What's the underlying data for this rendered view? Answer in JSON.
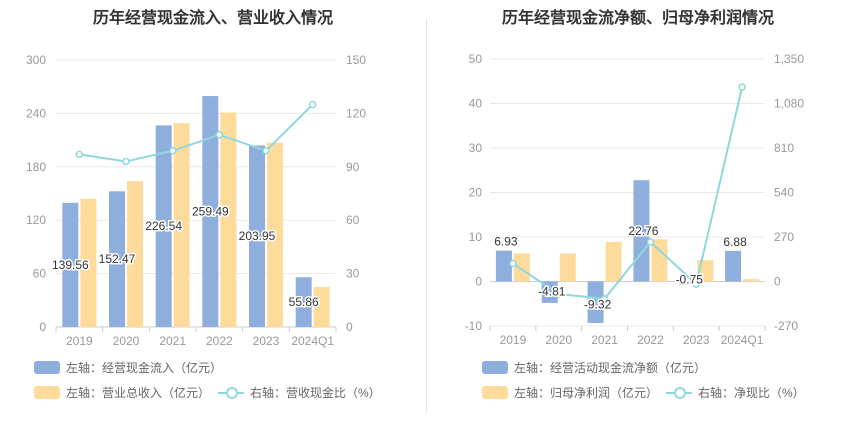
{
  "colors": {
    "bar_left": "#8eaedd",
    "bar_right": "#ffdb9b",
    "line": "#8fd7dc",
    "grid": "#e8e8e8",
    "axis_text": "#999999"
  },
  "chart_data": [
    {
      "type": "bar",
      "title": "历年经营现金流入、营业收入情况",
      "categories": [
        "2019",
        "2020",
        "2021",
        "2022",
        "2023",
        "2024Q1"
      ],
      "left_axis": {
        "min": 0,
        "max": 300,
        "ticks": [
          "0",
          "60",
          "120",
          "180",
          "240",
          "300"
        ]
      },
      "right_axis": {
        "min": 0,
        "max": 150,
        "ticks": [
          "0",
          "30",
          "60",
          "90",
          "120",
          "150"
        ]
      },
      "series": [
        {
          "name": "左轴：经营现金流入（亿元）",
          "axis": "left",
          "kind": "bar",
          "values": [
            139.56,
            152.47,
            226.54,
            259.49,
            203.95,
            55.86
          ],
          "labels": [
            "139.56",
            "152.47",
            "226.54",
            "259.49",
            "203.95",
            "55.86"
          ]
        },
        {
          "name": "左轴：营业总收入（亿元）",
          "axis": "left",
          "kind": "bar",
          "values": [
            144,
            164,
            229,
            241,
            207,
            45
          ]
        },
        {
          "name": "右轴：营收现金比（%）",
          "axis": "right",
          "kind": "line",
          "values": [
            97,
            93,
            99,
            108,
            99,
            125
          ]
        }
      ]
    },
    {
      "type": "bar",
      "title": "历年经营现金流净额、归母净利润情况",
      "categories": [
        "2019",
        "2020",
        "2021",
        "2022",
        "2023",
        "2024Q1"
      ],
      "left_axis": {
        "min": -10,
        "max": 50,
        "ticks": [
          "-10",
          "0",
          "10",
          "20",
          "30",
          "40",
          "50"
        ]
      },
      "right_axis": {
        "min": -270,
        "max": 1350,
        "ticks": [
          "-270",
          "0",
          "270",
          "540",
          "810",
          "1,080",
          "1,350"
        ]
      },
      "series": [
        {
          "name": "左轴：经营活动现金流净额（亿元）",
          "axis": "left",
          "kind": "bar",
          "values": [
            6.93,
            -4.81,
            -9.32,
            22.76,
            -0.75,
            6.88
          ],
          "labels": [
            "6.93",
            "-4.81",
            "-9.32",
            "22.76",
            "-0.75",
            "6.88"
          ]
        },
        {
          "name": "左轴：归母净利润（亿元）",
          "axis": "left",
          "kind": "bar",
          "values": [
            6.3,
            6.3,
            8.9,
            9.5,
            4.8,
            0.55
          ]
        },
        {
          "name": "右轴：净现比（%）",
          "axis": "right",
          "kind": "line",
          "values": [
            109,
            -76,
            -105,
            240,
            -16,
            1180
          ]
        }
      ]
    }
  ]
}
